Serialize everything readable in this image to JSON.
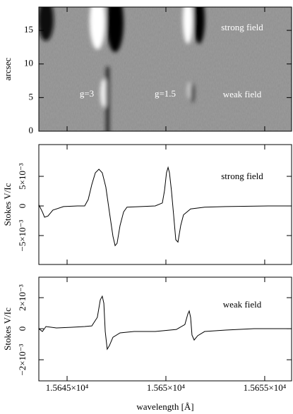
{
  "chart_data": [
    {
      "type": "image",
      "ylabel": "arcsec",
      "ylim": [
        0,
        18.47
      ],
      "yticks": [
        0,
        5,
        10,
        15
      ],
      "annotations": [
        "strong field",
        "weak field",
        "g=3",
        "g=1.5"
      ]
    },
    {
      "type": "line",
      "ylabel": "Stokes V/Ic",
      "annotation": "strong field",
      "ylim": [
        -0.00988,
        0.01036
      ],
      "yticks": [
        {
          "value": -0.005,
          "label": "−5×10⁻³"
        },
        0,
        {
          "value": 0.005,
          "label": "5×10⁻³"
        }
      ],
      "x": [
        15643.57,
        15643.75,
        15643.86,
        15644.03,
        15644.28,
        15644.82,
        15645.53,
        15645.89,
        15646.07,
        15646.25,
        15646.43,
        15646.61,
        15646.78,
        15646.96,
        15647.14,
        15647.32,
        15647.43,
        15647.53,
        15647.68,
        15647.86,
        15648.03,
        15648.75,
        15649.46,
        15649.82,
        15649.93,
        15650.03,
        15650.11,
        15650.18,
        15650.28,
        15650.39,
        15650.5,
        15650.61,
        15650.75,
        15650.89,
        15651.25,
        15651.96,
        15653.03,
        15655.18,
        15656.36
      ],
      "series": [
        {
          "color": "#000000",
          "values": [
            0.0002,
            -0.001,
            -0.0019,
            -0.0017,
            -0.0007,
            -0.0001,
            0,
            0,
            0.0011,
            0.0036,
            0.0056,
            0.0062,
            0.0056,
            0.0032,
            -0.001,
            -0.0051,
            -0.0067,
            -0.0063,
            -0.0033,
            -0.001,
            -0.0002,
            -0.0001,
            0,
            0.0005,
            0.0026,
            0.0056,
            0.0065,
            0.0056,
            0.0026,
            -0.0015,
            -0.0057,
            -0.0061,
            -0.0033,
            -0.0015,
            -0.0005,
            -0.0002,
            -0.0001,
            0,
            0
          ]
        }
      ]
    },
    {
      "type": "line",
      "ylabel": "Stokes V/Ic",
      "xlabel": "wavelength [Å]",
      "annotation": "weak field",
      "xlim": [
        15643.57,
        15656.36
      ],
      "xticks": [
        {
          "value": 15645,
          "label": "1.5645×10⁴"
        },
        {
          "value": 15650,
          "label": "1.565×10⁴"
        },
        {
          "value": 15655,
          "label": "1.5655×10⁴"
        }
      ],
      "ylim": [
        -0.00336,
        0.00332
      ],
      "yticks": [
        {
          "value": -0.002,
          "label": "−2×10⁻³"
        },
        0,
        {
          "value": 0.002,
          "label": "2×10⁻³"
        }
      ],
      "x": [
        15643.57,
        15643.75,
        15643.93,
        15644.46,
        15645.18,
        15645.89,
        15646.25,
        15646.53,
        15646.68,
        15646.78,
        15646.86,
        15646.93,
        15647.03,
        15647.14,
        15647.32,
        15647.68,
        15648.39,
        15649.46,
        15650.53,
        15650.96,
        15651.11,
        15651.18,
        15651.25,
        15651.32,
        15651.43,
        15651.61,
        15651.96,
        15653.03,
        15654.46,
        15656.36
      ],
      "series": [
        {
          "color": "#000000",
          "values": [
            0,
            -0.00018,
            0.00014,
            5e-05,
            9e-05,
            0.00014,
            0.00018,
            0.00073,
            0.00186,
            0.00209,
            0.00164,
            -0.00018,
            -0.00132,
            -0.00109,
            -0.00055,
            -0.00027,
            -0.00018,
            -0.00018,
            -5e-05,
            0.00027,
            0.00095,
            0.00114,
            0.00073,
            -0.00041,
            -0.00073,
            -0.00045,
            -0.00018,
            -9e-05,
            0,
            0
          ]
        }
      ]
    }
  ]
}
